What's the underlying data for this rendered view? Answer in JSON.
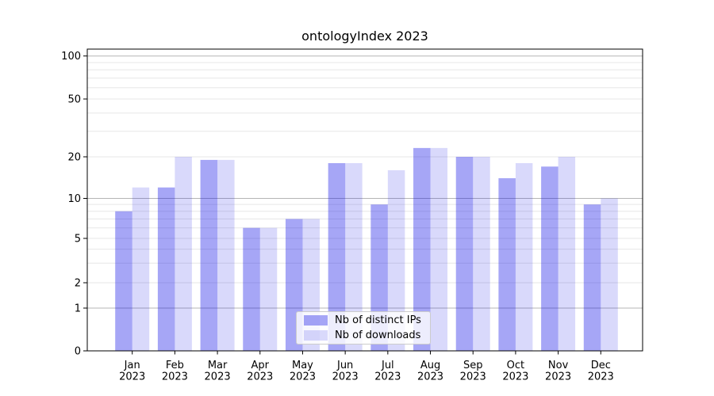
{
  "chart_data": {
    "type": "bar",
    "title": "ontologyIndex 2023",
    "categories": [
      "Jan",
      "Feb",
      "Mar",
      "Apr",
      "May",
      "Jun",
      "Jul",
      "Aug",
      "Sep",
      "Oct",
      "Nov",
      "Dec"
    ],
    "year_label": "2023",
    "series": [
      {
        "name": "Nb of distinct IPs",
        "values": [
          8,
          12,
          19,
          6,
          7,
          18,
          9,
          23,
          20,
          14,
          17,
          9
        ]
      },
      {
        "name": "Nb of downloads",
        "values": [
          12,
          20,
          19,
          6,
          7,
          18,
          16,
          23,
          20,
          18,
          20,
          10
        ]
      }
    ],
    "ylim": [
      0,
      100
    ],
    "yticks": [
      0,
      1,
      2,
      5,
      10,
      20,
      50,
      100
    ],
    "major_grid_values": [
      1,
      10,
      100
    ],
    "minor_grid_values": [
      2,
      3,
      4,
      5,
      6,
      7,
      8,
      9,
      20,
      30,
      40,
      50,
      60,
      70,
      80,
      90
    ],
    "scale": "log-like",
    "grid": true,
    "legend_position": "lower center",
    "colors": {
      "ips_bar": "rgba(0,0,230,0.35)",
      "downloads_bar": "rgba(0,0,230,0.15)",
      "ips_bar_solid": "#a6a6f6",
      "downloads_bar_solid": "#d9d9fb",
      "major_grid": "#b5b5b5",
      "minor_grid": "#e7e7e7",
      "axis": "#000000"
    }
  }
}
